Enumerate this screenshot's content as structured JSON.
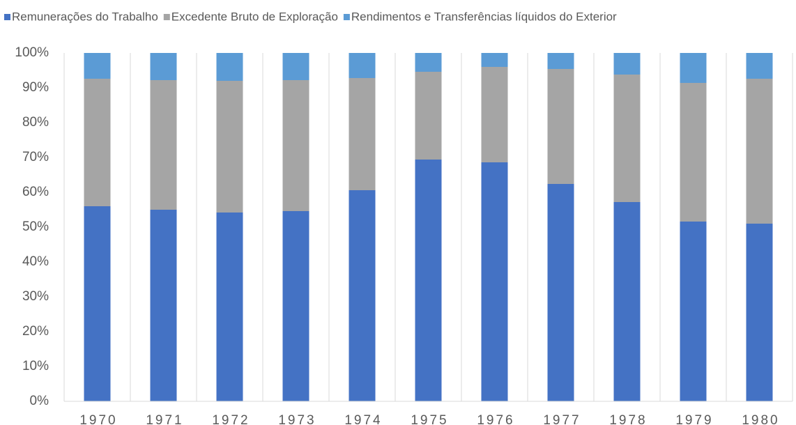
{
  "chart_data": {
    "type": "stacked_bar_100",
    "categories": [
      "1970",
      "1971",
      "1972",
      "1973",
      "1974",
      "1975",
      "1976",
      "1977",
      "1978",
      "1979",
      "1980"
    ],
    "series": [
      {
        "name": "Remunerações do Trabalho",
        "color": "#4472c4",
        "values": [
          56.0,
          55.0,
          54.2,
          54.6,
          60.6,
          69.4,
          68.6,
          62.4,
          57.2,
          51.6,
          51.0
        ]
      },
      {
        "name": "Excedente Bruto de Exploração",
        "color": "#a5a5a5",
        "values": [
          36.6,
          37.2,
          37.8,
          37.6,
          32.2,
          25.2,
          27.4,
          33.0,
          36.6,
          39.8,
          41.6
        ]
      },
      {
        "name": "Rendimentos e Transferências líquidos do Exterior",
        "color": "#5b9bd5",
        "values": [
          7.4,
          7.8,
          8.0,
          7.8,
          7.2,
          5.4,
          4.0,
          4.6,
          6.2,
          8.6,
          7.4
        ]
      }
    ],
    "ylim": [
      0,
      100
    ],
    "yticks": [
      {
        "value": 0,
        "label": "0%"
      },
      {
        "value": 10,
        "label": "10%"
      },
      {
        "value": 20,
        "label": "20%"
      },
      {
        "value": 30,
        "label": "30%"
      },
      {
        "value": 40,
        "label": "40%"
      },
      {
        "value": 50,
        "label": "50%"
      },
      {
        "value": 60,
        "label": "60%"
      },
      {
        "value": 70,
        "label": "70%"
      },
      {
        "value": 80,
        "label": "80%"
      },
      {
        "value": 90,
        "label": "90%"
      },
      {
        "value": 100,
        "label": "100%"
      }
    ],
    "legend": "top"
  }
}
